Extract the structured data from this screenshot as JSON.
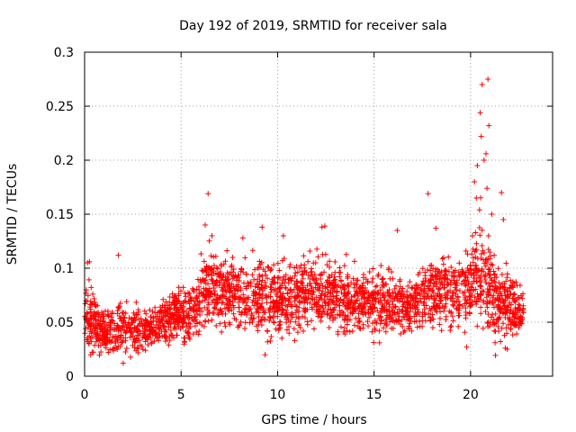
{
  "chart_data": {
    "type": "scatter",
    "title": "Day 192 of 2019, SRMTID for receiver sala",
    "xlabel": "GPS time / hours",
    "ylabel": "SRMTID / TECUs",
    "xlim": [
      0,
      24.25
    ],
    "ylim": [
      0,
      0.3
    ],
    "xticks": [
      0,
      5,
      10,
      15,
      20
    ],
    "yticks": [
      0,
      0.05,
      0.1,
      0.15,
      0.2,
      0.25,
      0.3
    ],
    "xtick_labels": [
      "0",
      "5",
      "10",
      "15",
      "20"
    ],
    "ytick_labels": [
      "0",
      "0.05",
      "0.1",
      "0.15",
      "0.2",
      "0.25",
      "0.3"
    ],
    "grid": true,
    "marker": "+",
    "color": "#ff0000",
    "series": [
      {
        "name": "SRMTID",
        "trend": [
          [
            0.0,
            0.058,
            0.022
          ],
          [
            0.5,
            0.05,
            0.018
          ],
          [
            1.0,
            0.04,
            0.014
          ],
          [
            1.5,
            0.042,
            0.014
          ],
          [
            2.0,
            0.043,
            0.013
          ],
          [
            2.5,
            0.042,
            0.013
          ],
          [
            3.0,
            0.043,
            0.013
          ],
          [
            3.5,
            0.045,
            0.013
          ],
          [
            4.0,
            0.05,
            0.014
          ],
          [
            4.5,
            0.055,
            0.015
          ],
          [
            5.0,
            0.058,
            0.015
          ],
          [
            5.5,
            0.06,
            0.016
          ],
          [
            6.0,
            0.07,
            0.02
          ],
          [
            6.5,
            0.085,
            0.022
          ],
          [
            7.0,
            0.08,
            0.02
          ],
          [
            8.0,
            0.075,
            0.02
          ],
          [
            9.0,
            0.072,
            0.022
          ],
          [
            10.0,
            0.07,
            0.022
          ],
          [
            11.0,
            0.075,
            0.02
          ],
          [
            12.0,
            0.078,
            0.02
          ],
          [
            13.0,
            0.073,
            0.02
          ],
          [
            14.0,
            0.072,
            0.02
          ],
          [
            15.0,
            0.07,
            0.019
          ],
          [
            16.0,
            0.066,
            0.017
          ],
          [
            17.0,
            0.068,
            0.018
          ],
          [
            18.0,
            0.08,
            0.02
          ],
          [
            19.0,
            0.078,
            0.02
          ],
          [
            19.5,
            0.075,
            0.02
          ],
          [
            20.0,
            0.09,
            0.022
          ],
          [
            20.5,
            0.1,
            0.03
          ],
          [
            21.0,
            0.08,
            0.028
          ],
          [
            21.5,
            0.065,
            0.02
          ],
          [
            22.0,
            0.065,
            0.018
          ],
          [
            22.5,
            0.062,
            0.016
          ],
          [
            22.75,
            0.06,
            0.015
          ]
        ],
        "x_range": [
          0.0,
          22.75
        ],
        "n_points": 2700,
        "outliers": [
          [
            0.15,
            0.105
          ],
          [
            0.25,
            0.106
          ],
          [
            1.75,
            0.112
          ],
          [
            2.0,
            0.012
          ],
          [
            6.25,
            0.14
          ],
          [
            6.4,
            0.169
          ],
          [
            6.6,
            0.13
          ],
          [
            8.2,
            0.128
          ],
          [
            9.2,
            0.138
          ],
          [
            10.3,
            0.13
          ],
          [
            12.3,
            0.138
          ],
          [
            12.45,
            0.139
          ],
          [
            16.2,
            0.135
          ],
          [
            17.8,
            0.169
          ],
          [
            18.2,
            0.137
          ],
          [
            19.8,
            0.027
          ],
          [
            20.1,
            0.13
          ],
          [
            20.2,
            0.18
          ],
          [
            20.3,
            0.165
          ],
          [
            20.35,
            0.195
          ],
          [
            20.5,
            0.244
          ],
          [
            20.55,
            0.222
          ],
          [
            20.6,
            0.27
          ],
          [
            20.7,
            0.2
          ],
          [
            20.8,
            0.206
          ],
          [
            20.85,
            0.174
          ],
          [
            20.9,
            0.275
          ],
          [
            20.95,
            0.232
          ],
          [
            21.1,
            0.15
          ],
          [
            21.6,
            0.17
          ],
          [
            21.7,
            0.145
          ],
          [
            21.8,
            0.026
          ],
          [
            21.9,
            0.025
          ],
          [
            22.5,
            0.045
          ]
        ]
      }
    ]
  }
}
